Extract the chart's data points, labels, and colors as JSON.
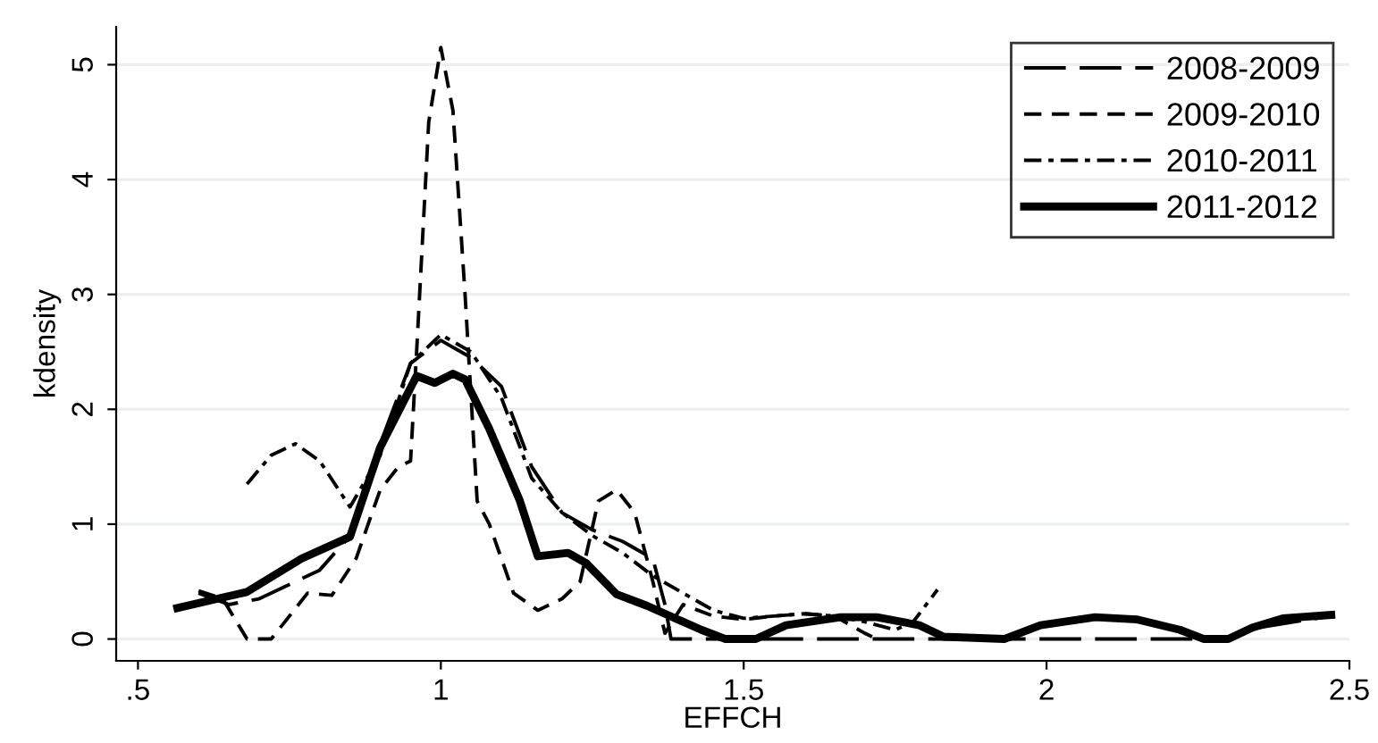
{
  "chart_data": {
    "type": "line",
    "xlabel": "EFFCH",
    "ylabel": "kdensity",
    "xlim": [
      0.464,
      2.5
    ],
    "ylim": [
      -0.19,
      5.33
    ],
    "xticks": [
      {
        "value": 0.5,
        "label": ".5"
      },
      1,
      1.5,
      2,
      2.5
    ],
    "yticks": [
      0,
      1,
      2,
      3,
      4,
      5
    ],
    "grid": "y",
    "legend": "top right",
    "marker": "none",
    "series": [
      {
        "name": "2008-2009",
        "color": "#000000",
        "line_style": "dashed",
        "x": [
          0.6,
          0.65,
          0.7,
          0.8,
          0.85,
          0.9,
          0.95,
          1.0,
          1.05,
          1.1,
          1.15,
          1.2,
          1.25,
          1.3,
          1.35,
          1.37,
          1.38,
          2.3,
          2.35,
          2.47
        ],
        "values": [
          0.4,
          0.3,
          0.35,
          0.6,
          0.9,
          1.7,
          2.4,
          2.6,
          2.45,
          2.2,
          1.5,
          1.1,
          0.95,
          0.85,
          0.7,
          0.3,
          0,
          0,
          0.1,
          0.2
        ]
      },
      {
        "name": "2009-2010",
        "color": "#000000",
        "line_style": "dashed",
        "x": [
          0.6,
          0.64,
          0.68,
          0.72,
          0.78,
          0.82,
          0.86,
          0.9,
          0.93,
          0.95,
          0.96,
          0.98,
          1.0,
          1.02,
          1.04,
          1.06,
          1.08,
          1.12,
          1.16,
          1.2,
          1.23,
          1.26,
          1.29,
          1.32,
          1.35,
          1.37,
          1.4,
          1.45,
          1.5,
          1.55,
          1.6,
          1.65,
          1.7,
          1.72
        ],
        "values": [
          0.42,
          0.35,
          0,
          0,
          0.4,
          0.38,
          0.7,
          1.3,
          1.5,
          1.55,
          2.5,
          4.5,
          5.15,
          4.6,
          3.0,
          1.2,
          1.0,
          0.4,
          0.25,
          0.35,
          0.5,
          1.2,
          1.3,
          1.1,
          0.5,
          0.05,
          0.3,
          0.2,
          0.17,
          0.2,
          0.22,
          0.2,
          0.05,
          0
        ]
      },
      {
        "name": "2010-2011",
        "color": "#000000",
        "line_style": "dashdot",
        "x": [
          0.68,
          0.72,
          0.76,
          0.8,
          0.85,
          0.9,
          0.95,
          1.0,
          1.05,
          1.1,
          1.15,
          1.2,
          1.25,
          1.3,
          1.35,
          1.4,
          1.45,
          1.5,
          1.55,
          1.6,
          1.65,
          1.7,
          1.75,
          1.78,
          1.82
        ],
        "values": [
          1.35,
          1.6,
          1.7,
          1.55,
          1.15,
          1.6,
          2.4,
          2.65,
          2.5,
          2.1,
          1.4,
          1.1,
          0.9,
          0.75,
          0.55,
          0.4,
          0.25,
          0.18,
          0.2,
          0.22,
          0.2,
          0.15,
          0.08,
          0.15,
          0.43
        ]
      },
      {
        "name": "2011-2012",
        "color": "#000000",
        "line_style": "solid",
        "x": [
          0.565,
          0.68,
          0.77,
          0.85,
          0.9,
          0.96,
          0.99,
          1.02,
          1.04,
          1.08,
          1.13,
          1.16,
          1.21,
          1.24,
          1.29,
          1.34,
          1.43,
          1.47,
          1.52,
          1.57,
          1.66,
          1.72,
          1.79,
          1.83,
          1.93,
          1.99,
          2.08,
          2.15,
          2.22,
          2.26,
          2.3,
          2.34,
          2.39,
          2.47
        ],
        "values": [
          0.27,
          0.41,
          0.7,
          0.89,
          1.67,
          2.29,
          2.23,
          2.31,
          2.26,
          1.83,
          1.21,
          0.72,
          0.75,
          0.66,
          0.39,
          0.29,
          0.08,
          0,
          0,
          0.12,
          0.19,
          0.19,
          0.12,
          0.02,
          0,
          0.12,
          0.19,
          0.17,
          0.08,
          0,
          0,
          0.1,
          0.18,
          0.21
        ]
      }
    ]
  }
}
